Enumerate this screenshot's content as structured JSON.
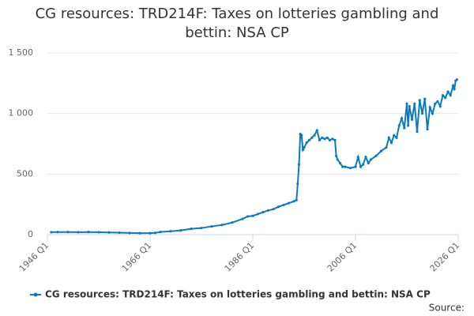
{
  "chart_data": {
    "type": "line",
    "title": "CG resources: TRD214F: Taxes on lotteries gambling and bettin: NSA CP",
    "source": "Source:",
    "xlim": [
      1946,
      2026
    ],
    "xticks": [
      {
        "value": 1946,
        "label": "1946 Q1"
      },
      {
        "value": 1966,
        "label": "1966 Q1"
      },
      {
        "value": 1986,
        "label": "1986 Q1"
      },
      {
        "value": 2006,
        "label": "2006 Q1"
      },
      {
        "value": 2026,
        "label": "2026 Q1"
      }
    ],
    "ylim": [
      0,
      1500
    ],
    "yticks": [
      0,
      500,
      {
        "value": 1000,
        "label": "1 000"
      },
      {
        "value": 1500,
        "label": "1 500"
      }
    ],
    "grid": true,
    "legend": "bottom",
    "series": [
      {
        "name": "CG resources: TRD214F: Taxes on lotteries gambling and bettin: NSA CP",
        "color": "#0b7bc1",
        "x": [
          1946.75,
          1948,
          1950,
          1952,
          1954,
          1956,
          1958,
          1960,
          1962,
          1964,
          1966,
          1967,
          1968,
          1970,
          1972,
          1974,
          1976,
          1978,
          1980,
          1982,
          1984,
          1985,
          1986,
          1987,
          1988,
          1989,
          1990,
          1991,
          1992,
          1993,
          1994,
          1994.5,
          1994.75,
          1995,
          1995.25,
          1995.5,
          1995.75,
          1996,
          1996.5,
          1997,
          1997.5,
          1998,
          1998.5,
          1999,
          1999.5,
          2000,
          2000.5,
          2001,
          2001.5,
          2002,
          2002.25,
          2002.5,
          2003,
          2003.5,
          2004,
          2005,
          2006,
          2006.5,
          2007,
          2007.5,
          2008,
          2008.5,
          2009,
          2010,
          2011,
          2012,
          2012.5,
          2013,
          2013.5,
          2014,
          2014.5,
          2015,
          2015.5,
          2016,
          2016.25,
          2016.5,
          2017,
          2017.5,
          2018,
          2018.5,
          2019,
          2019.5,
          2020,
          2020.5,
          2021,
          2021.5,
          2022,
          2022.5,
          2023,
          2023.5,
          2024,
          2024.5,
          2025,
          2025.25,
          2025.5,
          2025.75
        ],
        "values": [
          20,
          21,
          21,
          20,
          21,
          20,
          18,
          16,
          14,
          12,
          12,
          15,
          22,
          28,
          35,
          48,
          55,
          68,
          80,
          100,
          130,
          150,
          155,
          170,
          185,
          200,
          210,
          230,
          245,
          260,
          275,
          285,
          420,
          580,
          830,
          820,
          700,
          720,
          760,
          780,
          800,
          820,
          860,
          780,
          800,
          790,
          800,
          780,
          790,
          780,
          650,
          620,
          590,
          560,
          560,
          550,
          560,
          640,
          560,
          580,
          640,
          590,
          620,
          650,
          690,
          720,
          800,
          760,
          820,
          800,
          900,
          960,
          880,
          1080,
          900,
          1060,
          950,
          1080,
          850,
          1110,
          1000,
          1120,
          870,
          1050,
          1000,
          1080,
          1100,
          1060,
          1150,
          1130,
          1180,
          1150,
          1230,
          1200,
          1270,
          1280
        ]
      }
    ]
  }
}
